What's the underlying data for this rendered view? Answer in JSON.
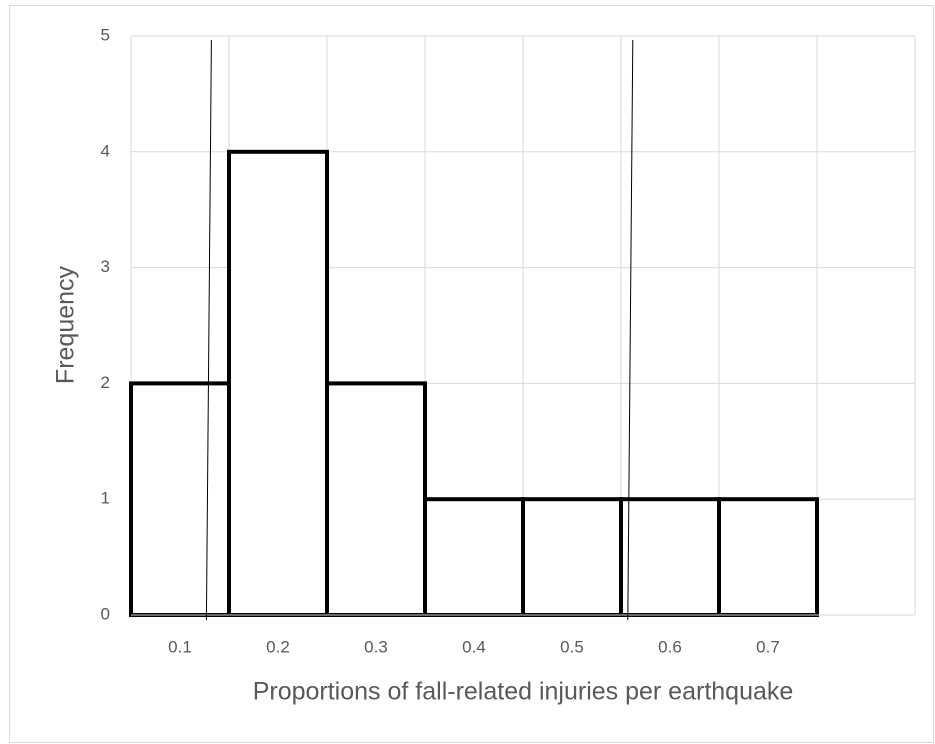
{
  "chart_data": {
    "type": "histogram",
    "x_label": "Proportions of fall-related injuries per earthquake",
    "y_label": "Frequency",
    "bins": [
      0.05,
      0.15,
      0.25,
      0.35,
      0.45,
      0.55,
      0.65,
      0.75
    ],
    "counts": [
      2,
      4,
      2,
      1,
      1,
      1,
      1
    ],
    "color": "#000000",
    "xlim": [
      0.05,
      0.85
    ],
    "xticks": [
      0.1,
      0.2,
      0.3,
      0.4,
      0.5,
      0.6,
      0.7
    ],
    "ylim": [
      0,
      5
    ],
    "yticks": [
      0,
      1,
      2,
      3,
      4,
      5
    ],
    "grid": true,
    "vlines": [
      0.13,
      0.56
    ]
  }
}
